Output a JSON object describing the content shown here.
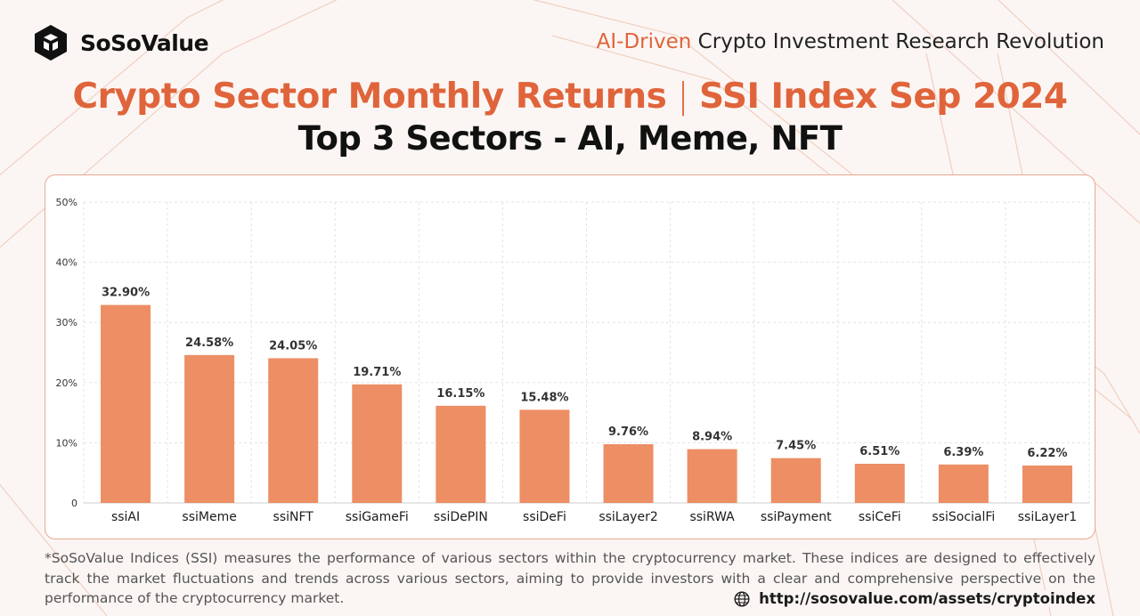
{
  "brand": {
    "name": "SoSoValue",
    "logo_icon": "sosovalue-cube-logo"
  },
  "tagline": {
    "accent": "AI-Driven",
    "rest": "Crypto Investment Research Revolution"
  },
  "title": {
    "left": "Crypto Sector Monthly Returns",
    "separator": "|",
    "right": "SSI Index Sep 2024"
  },
  "subtitle": "Top 3 Sectors - AI, Meme, NFT",
  "colors": {
    "accent": "#e0643b",
    "bar": "#ed8e65",
    "frame": "#e9a88f"
  },
  "chart_data": {
    "type": "bar",
    "categories": [
      "ssiAI",
      "ssiMeme",
      "ssiNFT",
      "ssiGameFi",
      "ssiDePIN",
      "ssiDeFi",
      "ssiLayer2",
      "ssiRWA",
      "ssiPayment",
      "ssiCeFi",
      "ssiSocialFi",
      "ssiLayer1"
    ],
    "values": [
      32.9,
      24.58,
      24.05,
      19.71,
      16.15,
      15.48,
      9.76,
      8.94,
      7.45,
      6.51,
      6.39,
      6.22
    ],
    "data_labels": [
      "32.90%",
      "24.58%",
      "24.05%",
      "19.71%",
      "16.15%",
      "15.48%",
      "9.76%",
      "8.94%",
      "7.45%",
      "6.51%",
      "6.39%",
      "6.22%"
    ],
    "ylim": [
      0,
      50
    ],
    "yticks": [
      0,
      10,
      20,
      30,
      40,
      50
    ],
    "ytick_labels": [
      "0",
      "10%",
      "20%",
      "30%",
      "40%",
      "50%"
    ],
    "grid": true
  },
  "footnote": "*SoSoValue Indices (SSI) measures the performance of various sectors within the cryptocurrency market. These indices are designed to effectively track the market fluctuations and trends across various sectors, aiming to provide investors with a clear and comprehensive perspective on the performance of the cryptocurrency market.",
  "url": {
    "icon": "globe-icon",
    "text": "http://sosovalue.com/assets/cryptoindex"
  }
}
